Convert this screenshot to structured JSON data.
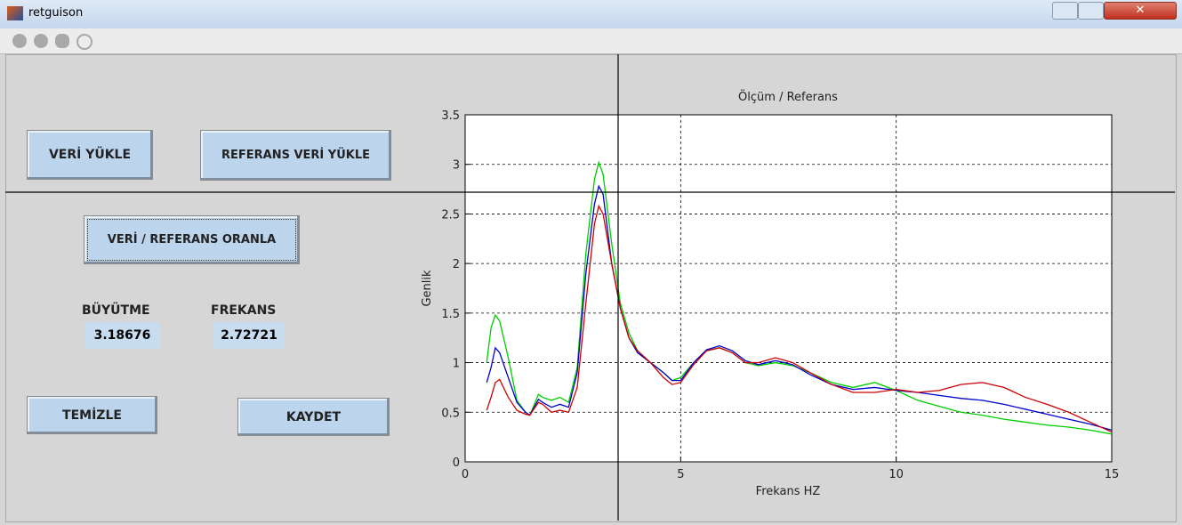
{
  "window": {
    "title": "retguison"
  },
  "buttons": {
    "load_data": "VERİ YÜKLE",
    "load_reference": "REFERANS VERİ YÜKLE",
    "ratio": "VERİ / REFERANS ORANLA",
    "clear": "TEMİZLE",
    "save": "KAYDET"
  },
  "results": {
    "gain_label": "BÜYÜTME",
    "gain_value": "3.18676",
    "freq_label": "FREKANS",
    "freq_value": "2.72721"
  },
  "chart_data": {
    "type": "line",
    "title": "Ölçüm / Referans",
    "x_label": "Frekans HZ",
    "y_label": "Genlik",
    "x": [
      0.5,
      0.6,
      0.7,
      0.8,
      1.0,
      1.2,
      1.4,
      1.5,
      1.7,
      1.8,
      2.0,
      2.2,
      2.4,
      2.6,
      2.8,
      3.0,
      3.1,
      3.2,
      3.4,
      3.6,
      3.8,
      4.0,
      4.3,
      4.6,
      4.8,
      5.0,
      5.3,
      5.6,
      5.9,
      6.2,
      6.5,
      6.8,
      7.2,
      7.6,
      8.0,
      8.5,
      9.0,
      9.5,
      10,
      10.5,
      11,
      11.5,
      12,
      12.5,
      13,
      13.5,
      14,
      14.5,
      15
    ],
    "series": [
      {
        "color": "#00cc00",
        "values": [
          1.0,
          1.35,
          1.48,
          1.42,
          1.05,
          0.62,
          0.5,
          0.47,
          0.68,
          0.65,
          0.62,
          0.65,
          0.6,
          0.95,
          2.1,
          2.85,
          3.02,
          2.9,
          2.2,
          1.6,
          1.3,
          1.12,
          1.0,
          0.9,
          0.82,
          0.85,
          1.0,
          1.12,
          1.15,
          1.1,
          1.0,
          0.97,
          1.0,
          0.97,
          0.9,
          0.8,
          0.75,
          0.8,
          0.72,
          0.62,
          0.56,
          0.5,
          0.47,
          0.43,
          0.4,
          0.37,
          0.35,
          0.32,
          0.28
        ]
      },
      {
        "color": "#0000cc",
        "values": [
          0.8,
          0.95,
          1.15,
          1.1,
          0.85,
          0.6,
          0.5,
          0.47,
          0.63,
          0.6,
          0.55,
          0.58,
          0.55,
          0.9,
          1.9,
          2.6,
          2.78,
          2.7,
          2.0,
          1.55,
          1.25,
          1.1,
          1.0,
          0.9,
          0.82,
          0.82,
          1.0,
          1.13,
          1.17,
          1.12,
          1.02,
          0.98,
          1.02,
          0.98,
          0.88,
          0.78,
          0.73,
          0.75,
          0.72,
          0.7,
          0.67,
          0.64,
          0.62,
          0.58,
          0.53,
          0.48,
          0.43,
          0.38,
          0.32
        ]
      },
      {
        "color": "#cc0000",
        "values": [
          0.52,
          0.65,
          0.8,
          0.83,
          0.65,
          0.52,
          0.48,
          0.47,
          0.6,
          0.58,
          0.5,
          0.52,
          0.5,
          0.75,
          1.6,
          2.4,
          2.58,
          2.5,
          2.0,
          1.55,
          1.25,
          1.12,
          1.0,
          0.85,
          0.78,
          0.8,
          0.98,
          1.12,
          1.15,
          1.1,
          1.0,
          1.0,
          1.05,
          1.0,
          0.9,
          0.78,
          0.7,
          0.7,
          0.73,
          0.7,
          0.72,
          0.78,
          0.8,
          0.75,
          0.65,
          0.58,
          0.5,
          0.4,
          0.3
        ]
      }
    ],
    "xlim": [
      0,
      15
    ],
    "xticks": [
      0,
      5,
      10,
      15
    ],
    "ylim": [
      0,
      3.5
    ],
    "yticks": [
      0,
      0.5,
      1,
      1.5,
      2,
      2.5,
      3,
      3.5
    ],
    "grid": true
  }
}
